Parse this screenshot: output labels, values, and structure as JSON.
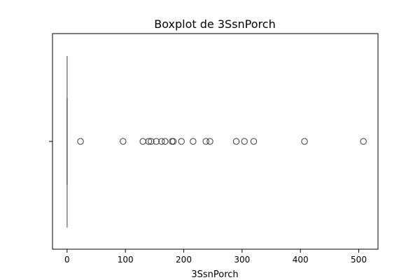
{
  "chart_data": {
    "type": "box",
    "orientation": "horizontal",
    "title": "Boxplot de 3SsnPorch",
    "xlabel": "3SsnPorch",
    "ylabel": "",
    "xlim": [
      -25,
      533
    ],
    "x_ticks": [
      0,
      100,
      200,
      300,
      400,
      500
    ],
    "grid": false,
    "box": {
      "min": 0,
      "q1": 0,
      "median": 0,
      "q3": 0,
      "max": 0
    },
    "outliers": [
      23,
      96,
      130,
      140,
      144,
      153,
      162,
      168,
      180,
      182,
      196,
      216,
      238,
      245,
      290,
      304,
      320,
      407,
      508
    ],
    "colors": {
      "box": "#7f7f7f",
      "outlier_edge": "#3a3a3a",
      "axes": "#000000"
    }
  }
}
